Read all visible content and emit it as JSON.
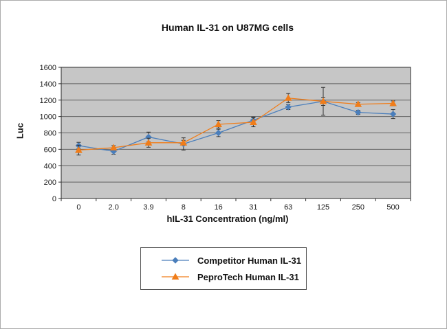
{
  "chart_data": {
    "type": "line",
    "title": "Human IL-31 on U87MG cells",
    "xlabel": "hIL-31 Concentration (ng/ml)",
    "ylabel": "Luc",
    "categories": [
      "0",
      "2.0",
      "3.9",
      "8",
      "16",
      "31",
      "63",
      "125",
      "250",
      "500"
    ],
    "ylim": [
      0,
      1600
    ],
    "yticks": [
      0,
      200,
      400,
      600,
      800,
      1000,
      1200,
      1400,
      1600
    ],
    "grid": true,
    "legend_position": "bottom",
    "plot_bg": "#c6c6c6",
    "error_bar_color": "#333333",
    "series": [
      {
        "name": "Competitor Human IL-31",
        "color": "#4a7ebb",
        "marker": "diamond",
        "values": [
          645,
          575,
          750,
          665,
          800,
          955,
          1115,
          1185,
          1050,
          1030
        ],
        "errors": [
          40,
          35,
          60,
          75,
          45,
          40,
          30,
          170,
          25,
          55
        ]
      },
      {
        "name": "PeproTech Human IL-31",
        "color": "#f07d1a",
        "marker": "triangle",
        "values": [
          590,
          620,
          680,
          680,
          905,
          930,
          1225,
          1185,
          1150,
          1160
        ],
        "errors": [
          60,
          25,
          55,
          30,
          45,
          55,
          55,
          50,
          20,
          30
        ]
      }
    ]
  }
}
